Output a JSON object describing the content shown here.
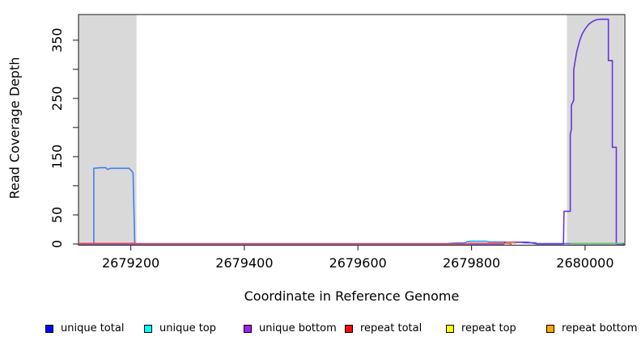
{
  "figure": {
    "x_axis_title": "Coordinate in Reference Genome",
    "y_axis_title": "Read Coverage Depth"
  },
  "chart_data": {
    "type": "line",
    "title": "",
    "xlabel": "Coordinate in Reference Genome",
    "ylabel": "Read Coverage Depth",
    "xlim": [
      2679108,
      2680070
    ],
    "ylim": [
      0,
      394
    ],
    "grid": false,
    "legend_position": "bottom",
    "x_ticks": [
      2679200,
      2679400,
      2679600,
      2679800,
      2680000
    ],
    "y_ticks": [
      {
        "v": 0,
        "label": "0"
      },
      {
        "v": 50,
        "label": "50"
      },
      {
        "v": 100,
        "label": ""
      },
      {
        "v": 150,
        "label": "150"
      },
      {
        "v": 200,
        "label": ""
      },
      {
        "v": 250,
        "label": "250"
      },
      {
        "v": 300,
        "label": ""
      },
      {
        "v": 350,
        "label": "350"
      }
    ],
    "highlight_regions": [
      {
        "name": "left-gray-band",
        "x0": 2679108,
        "x1": 2679210,
        "color": "#d9d9d9"
      },
      {
        "name": "right-gray-band",
        "x0": 2679968,
        "x1": 2680068,
        "color": "#d9d9d9"
      }
    ],
    "series": [
      {
        "id": "unique-total",
        "name": "unique total",
        "legend_color": "#0000ff",
        "line_color": "#3f7fef",
        "points": [
          [
            2679108,
            0.5
          ],
          [
            2679135,
            0.5
          ],
          [
            2679135,
            130
          ],
          [
            2679146,
            131
          ],
          [
            2679156,
            131
          ],
          [
            2679159,
            128
          ],
          [
            2679165,
            130
          ],
          [
            2679192,
            130
          ],
          [
            2679197,
            130
          ],
          [
            2679201,
            126
          ],
          [
            2679204,
            122
          ],
          [
            2679207,
            0.5
          ],
          [
            2679757,
            0.5
          ],
          [
            2679768,
            1.5
          ],
          [
            2679788,
            2
          ],
          [
            2679793,
            4
          ],
          [
            2679800,
            4.5
          ],
          [
            2679827,
            4.5
          ],
          [
            2679831,
            3.5
          ],
          [
            2679856,
            3.5
          ],
          [
            2679862,
            3
          ],
          [
            2679888,
            3
          ],
          [
            2679893,
            2
          ],
          [
            2679906,
            2
          ],
          [
            2679911,
            0.5
          ],
          [
            2680070,
            0.5
          ]
        ]
      },
      {
        "id": "unique-top",
        "name": "unique top",
        "legend_color": "#00ffff",
        "line_color": "#38b6f0",
        "points": [
          [
            2679795,
            4
          ],
          [
            2679798,
            5
          ],
          [
            2679826,
            5
          ],
          [
            2679829,
            4
          ]
        ]
      },
      {
        "id": "unique-bottom",
        "name": "unique bottom",
        "legend_color": "#a020f0",
        "line_color": "#6633e6",
        "points": [
          [
            2679108,
            0
          ],
          [
            2679857,
            0
          ],
          [
            2679859,
            3
          ],
          [
            2679900,
            3
          ],
          [
            2679904,
            2
          ],
          [
            2679913,
            2
          ],
          [
            2679915,
            0
          ],
          [
            2679962,
            0
          ],
          [
            2679963,
            56
          ],
          [
            2679974,
            56
          ],
          [
            2679974,
            188
          ],
          [
            2679976,
            197
          ],
          [
            2679976,
            238
          ],
          [
            2679980,
            247
          ],
          [
            2679980,
            299
          ],
          [
            2679983,
            317
          ],
          [
            2679985,
            329
          ],
          [
            2679988,
            340
          ],
          [
            2679991,
            351
          ],
          [
            2679995,
            361
          ],
          [
            2680000,
            369
          ],
          [
            2680006,
            377
          ],
          [
            2680013,
            382
          ],
          [
            2680020,
            385
          ],
          [
            2680028,
            386
          ],
          [
            2680041,
            386
          ],
          [
            2680041,
            315
          ],
          [
            2680048,
            315
          ],
          [
            2680048,
            166
          ],
          [
            2680055,
            166
          ],
          [
            2680055,
            0
          ],
          [
            2680070,
            0
          ]
        ]
      },
      {
        "id": "repeat-total",
        "name": "repeat total",
        "legend_color": "#ff0000",
        "line_color": "#ee4455",
        "points": [
          [
            2679108,
            1
          ],
          [
            2679208,
            1
          ],
          [
            2679209,
            0
          ],
          [
            2679793,
            0
          ],
          [
            2679795,
            1
          ],
          [
            2679866,
            1
          ],
          [
            2679868,
            0
          ],
          [
            2679871,
            0
          ]
        ]
      },
      {
        "id": "repeat-top",
        "name": "repeat top",
        "legend_color": "#ffff00",
        "line_color": "#e8e800",
        "points": []
      },
      {
        "id": "repeat-bottom",
        "name": "repeat bottom",
        "legend_color": "#ffa500",
        "line_color": "#f0a030",
        "points": [
          [
            2679860,
            0
          ],
          [
            2679861,
            2
          ],
          [
            2679876,
            2
          ],
          [
            2679877,
            0
          ]
        ]
      },
      {
        "id": "strand-overlap-baseline",
        "name": "",
        "legend_color": null,
        "line_color": "#70c070",
        "points": [
          [
            2679974,
            1
          ],
          [
            2680066,
            1
          ]
        ]
      }
    ],
    "legend": [
      {
        "label": "unique total",
        "color": "#0000ff"
      },
      {
        "label": "unique top",
        "color": "#00ffff"
      },
      {
        "label": "unique bottom",
        "color": "#a020f0"
      },
      {
        "label": "repeat total",
        "color": "#ff0000"
      },
      {
        "label": "repeat top",
        "color": "#ffff00"
      },
      {
        "label": "repeat bottom",
        "color": "#ffa500"
      }
    ]
  }
}
